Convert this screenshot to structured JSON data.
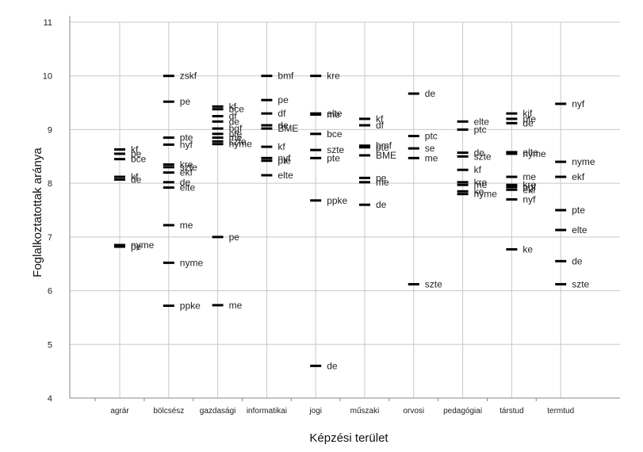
{
  "chart_data": {
    "type": "scatter",
    "xlabel": "Képzési terület",
    "ylabel": "Foglalkoztatottak aránya",
    "ylim": [
      4,
      11
    ],
    "yticks": [
      "4",
      "5",
      "6",
      "7",
      "8",
      "9",
      "10",
      "11"
    ],
    "grid": true,
    "categories": [
      "agrár",
      "bölcsész",
      "gazdasági",
      "informatikai",
      "jogi",
      "műszaki",
      "orvosi",
      "pedagógiai",
      "társtud",
      "termtud"
    ],
    "groups": [
      {
        "category": "agrár",
        "points": [
          {
            "label": "kf",
            "y": 8.63
          },
          {
            "label": "pe",
            "y": 8.55
          },
          {
            "label": "bce",
            "y": 8.45
          },
          {
            "label": "kf",
            "y": 8.12
          },
          {
            "label": "de",
            "y": 8.07
          },
          {
            "label": "nyme",
            "y": 6.85
          },
          {
            "label": "pe",
            "y": 6.82
          }
        ]
      },
      {
        "category": "bölcsész",
        "points": [
          {
            "label": "zskf",
            "y": 10.0
          },
          {
            "label": "pe",
            "y": 9.52
          },
          {
            "label": "pte",
            "y": 8.85
          },
          {
            "label": "nyf",
            "y": 8.72
          },
          {
            "label": "kre",
            "y": 8.35
          },
          {
            "label": "szte",
            "y": 8.3
          },
          {
            "label": "ekf",
            "y": 8.2
          },
          {
            "label": "de",
            "y": 8.02
          },
          {
            "label": "elte",
            "y": 7.92
          },
          {
            "label": "me",
            "y": 7.22
          },
          {
            "label": "nyme",
            "y": 6.52
          },
          {
            "label": "ppke",
            "y": 5.72
          }
        ]
      },
      {
        "category": "gazdasági",
        "points": [
          {
            "label": "kf",
            "y": 9.43
          },
          {
            "label": "bce",
            "y": 9.38
          },
          {
            "label": "df",
            "y": 9.25
          },
          {
            "label": "de",
            "y": 9.15
          },
          {
            "label": "bgf",
            "y": 9.02
          },
          {
            "label": "pte",
            "y": 8.92
          },
          {
            "label": "me",
            "y": 8.85
          },
          {
            "label": "szte",
            "y": 8.78
          },
          {
            "label": "nyme",
            "y": 8.73
          },
          {
            "label": "pe",
            "y": 7.0
          },
          {
            "label": "me",
            "y": 5.73
          }
        ]
      },
      {
        "category": "informatikai",
        "points": [
          {
            "label": "bmf",
            "y": 10.0
          },
          {
            "label": "pe",
            "y": 9.55
          },
          {
            "label": "df",
            "y": 9.3
          },
          {
            "label": "de",
            "y": 9.08
          },
          {
            "label": "BME",
            "y": 9.02
          },
          {
            "label": "kf",
            "y": 8.68
          },
          {
            "label": "nyf",
            "y": 8.47
          },
          {
            "label": "pte",
            "y": 8.42
          },
          {
            "label": "elte",
            "y": 8.15
          }
        ]
      },
      {
        "category": "jogi",
        "points": [
          {
            "label": "kre",
            "y": 10.0
          },
          {
            "label": "elte",
            "y": 9.3
          },
          {
            "label": "me",
            "y": 9.28
          },
          {
            "label": "bce",
            "y": 8.92
          },
          {
            "label": "szte",
            "y": 8.62
          },
          {
            "label": "pte",
            "y": 8.47
          },
          {
            "label": "ppke",
            "y": 7.68
          },
          {
            "label": "de",
            "y": 4.6
          }
        ]
      },
      {
        "category": "műszaki",
        "points": [
          {
            "label": "kf",
            "y": 9.2
          },
          {
            "label": "df",
            "y": 9.08
          },
          {
            "label": "bmf",
            "y": 8.7
          },
          {
            "label": "pte",
            "y": 8.67
          },
          {
            "label": "BME",
            "y": 8.52
          },
          {
            "label": "pe",
            "y": 8.1
          },
          {
            "label": "me",
            "y": 8.02
          },
          {
            "label": "de",
            "y": 7.6
          }
        ]
      },
      {
        "category": "orvosi",
        "points": [
          {
            "label": "de",
            "y": 9.67
          },
          {
            "label": "ptc",
            "y": 8.88
          },
          {
            "label": "se",
            "y": 8.65
          },
          {
            "label": "me",
            "y": 8.47
          },
          {
            "label": "szte",
            "y": 6.12
          }
        ]
      },
      {
        "category": "pedagógiai",
        "points": [
          {
            "label": "elte",
            "y": 9.15
          },
          {
            "label": "ptc",
            "y": 9.0
          },
          {
            "label": "de",
            "y": 8.57
          },
          {
            "label": "szte",
            "y": 8.5
          },
          {
            "label": "kf",
            "y": 8.25
          },
          {
            "label": "kre",
            "y": 8.02
          },
          {
            "label": "me",
            "y": 7.97
          },
          {
            "label": "ke",
            "y": 7.85
          },
          {
            "label": "nyme",
            "y": 7.8
          }
        ]
      },
      {
        "category": "társtud",
        "points": [
          {
            "label": "kjf",
            "y": 9.3
          },
          {
            "label": "pte",
            "y": 9.2
          },
          {
            "label": "de",
            "y": 9.12
          },
          {
            "label": "elte",
            "y": 8.58
          },
          {
            "label": "nyme",
            "y": 8.55
          },
          {
            "label": "me",
            "y": 8.12
          },
          {
            "label": "kre",
            "y": 7.97
          },
          {
            "label": "bgf",
            "y": 7.93
          },
          {
            "label": "ekf",
            "y": 7.88
          },
          {
            "label": "nyf",
            "y": 7.7
          },
          {
            "label": "ke",
            "y": 6.77
          }
        ]
      },
      {
        "category": "termtud",
        "points": [
          {
            "label": "nyf",
            "y": 9.48
          },
          {
            "label": "nyme",
            "y": 8.4
          },
          {
            "label": "ekf",
            "y": 8.12
          },
          {
            "label": "pte",
            "y": 7.5
          },
          {
            "label": "elte",
            "y": 7.13
          },
          {
            "label": "de",
            "y": 6.55
          },
          {
            "label": "szte",
            "y": 6.12
          }
        ]
      }
    ]
  }
}
